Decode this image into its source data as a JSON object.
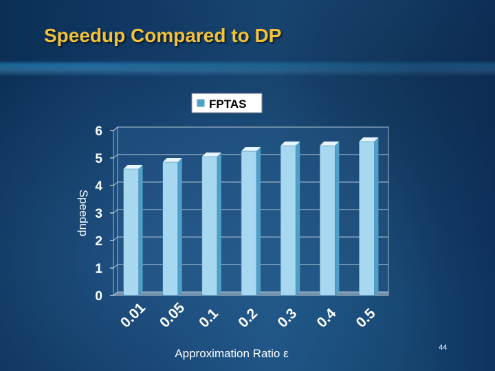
{
  "slide": {
    "title": "Speedup Compared to DP",
    "page_number": "44"
  },
  "colors": {
    "title": "#f2c33a",
    "bar_front": "#a8d8f0",
    "bar_side": "#4ea0c8",
    "bar_top": "#e6f6ff",
    "plot_wall": "#2a5f8e",
    "text": "#ffffff"
  },
  "chart_data": {
    "type": "bar",
    "style": "3d-clustered-column",
    "categories": [
      "0.01",
      "0.05",
      "0.1",
      "0.2",
      "0.3",
      "0.4",
      "0.5"
    ],
    "series": [
      {
        "name": "FPTAS",
        "values": [
          4.6,
          4.85,
          5.05,
          5.25,
          5.45,
          5.45,
          5.6
        ]
      }
    ],
    "xlabel": "Approximation Ratio ε",
    "ylabel": "Speedup",
    "ylim": [
      0,
      6
    ],
    "yticks": [
      "0",
      "1",
      "2",
      "3",
      "4",
      "5",
      "6"
    ],
    "grid": "horizontal",
    "legend": "top"
  }
}
